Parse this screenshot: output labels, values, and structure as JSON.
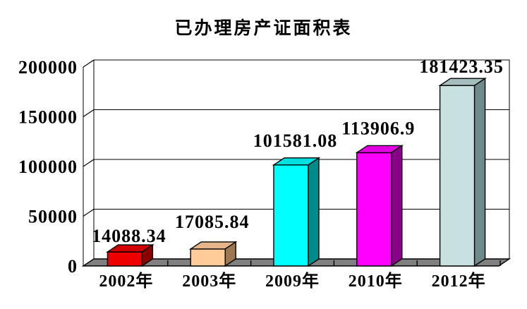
{
  "title": "已办理房产证面积表",
  "chart_data": {
    "type": "bar",
    "projection": "3d",
    "title": "已办理房产证面积表",
    "categories": [
      "2002年",
      "2003年",
      "2009年",
      "2010年",
      "2012年"
    ],
    "values": [
      14088.34,
      17085.84,
      101581.08,
      113906.9,
      181423.35
    ],
    "value_labels": [
      "14088.34",
      "17085.84",
      "101581.08",
      "113906.9",
      "181423.35"
    ],
    "bar_colors": [
      {
        "front": "#EE0000",
        "top": "#D20000",
        "side": "#8B0000"
      },
      {
        "front": "#FFCC99",
        "top": "#E6B58A",
        "side": "#9C7851"
      },
      {
        "front": "#00FFFF",
        "top": "#00E0E0",
        "side": "#008B8B"
      },
      {
        "front": "#FF00FF",
        "top": "#E200E2",
        "side": "#8B008B"
      },
      {
        "front": "#C9E0E0",
        "top": "#A6BDBD",
        "side": "#6F8A8A"
      }
    ],
    "xlabel": "",
    "ylabel": "",
    "ylim": [
      0,
      200000
    ],
    "ytick_labels": [
      "0",
      "50000",
      "100000",
      "150000",
      "200000"
    ],
    "ytick_values": [
      0,
      50000,
      100000,
      150000,
      200000
    ],
    "grid": true,
    "legend": false,
    "wall_color": "#FFFFFF",
    "floor_color": "#808080",
    "axis_color": "#000000",
    "text_color": "#000000",
    "background_color": "#FFFFFF"
  }
}
